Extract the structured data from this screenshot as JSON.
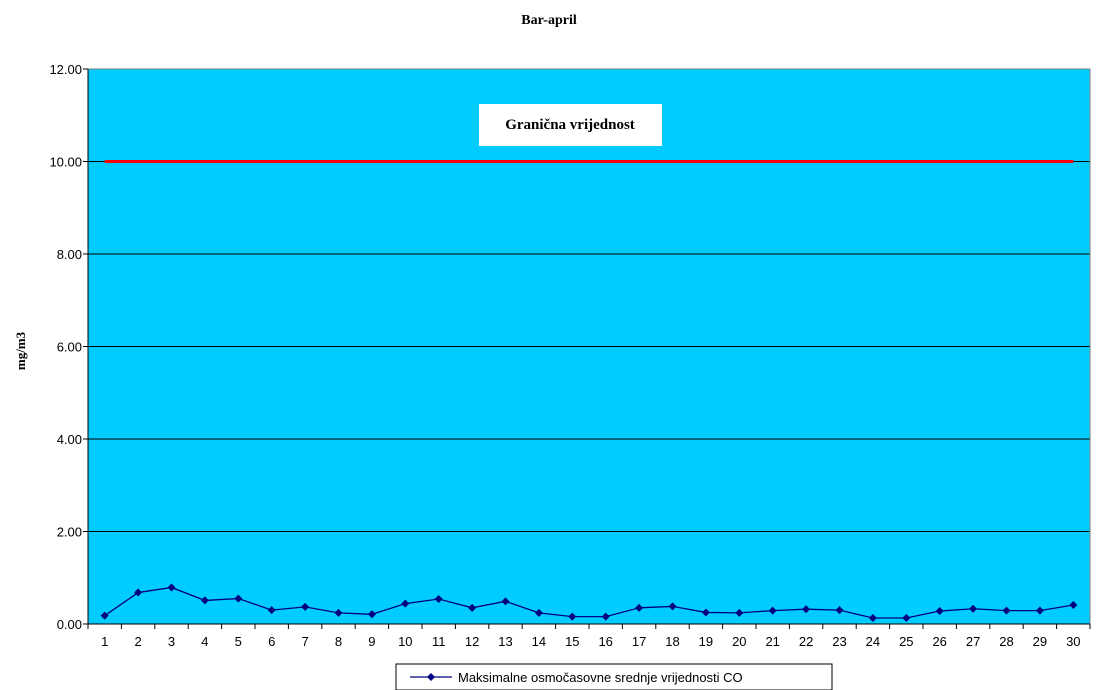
{
  "chart_data": {
    "type": "line",
    "title": "Bar-april",
    "xlabel": "",
    "ylabel": "mg/m3",
    "ylim": [
      0,
      12
    ],
    "ytick_values": [
      0,
      2,
      4,
      6,
      8,
      10,
      12
    ],
    "ytick_labels": [
      "0.00",
      "2.00",
      "4.00",
      "6.00",
      "8.00",
      "10.00",
      "12.00"
    ],
    "categories": [
      "1",
      "2",
      "3",
      "4",
      "5",
      "6",
      "7",
      "8",
      "9",
      "10",
      "11",
      "12",
      "13",
      "14",
      "15",
      "16",
      "17",
      "18",
      "19",
      "20",
      "21",
      "22",
      "23",
      "24",
      "25",
      "26",
      "27",
      "28",
      "29",
      "30"
    ],
    "series": [
      {
        "name": "Maksimalne osmočasovne srednje vrijednosti CO",
        "values": [
          0.18,
          0.68,
          0.79,
          0.51,
          0.55,
          0.3,
          0.37,
          0.24,
          0.21,
          0.44,
          0.54,
          0.35,
          0.49,
          0.24,
          0.16,
          0.16,
          0.35,
          0.38,
          0.25,
          0.24,
          0.29,
          0.32,
          0.3,
          0.13,
          0.13,
          0.28,
          0.33,
          0.29,
          0.29,
          0.41
        ],
        "color": "#000080"
      }
    ],
    "limit_line": {
      "value": 10.0,
      "label": "Granična vrijednost",
      "color": "#ff0000"
    },
    "plot_background": "#00ccff",
    "grid": true,
    "legend": "bottom"
  }
}
